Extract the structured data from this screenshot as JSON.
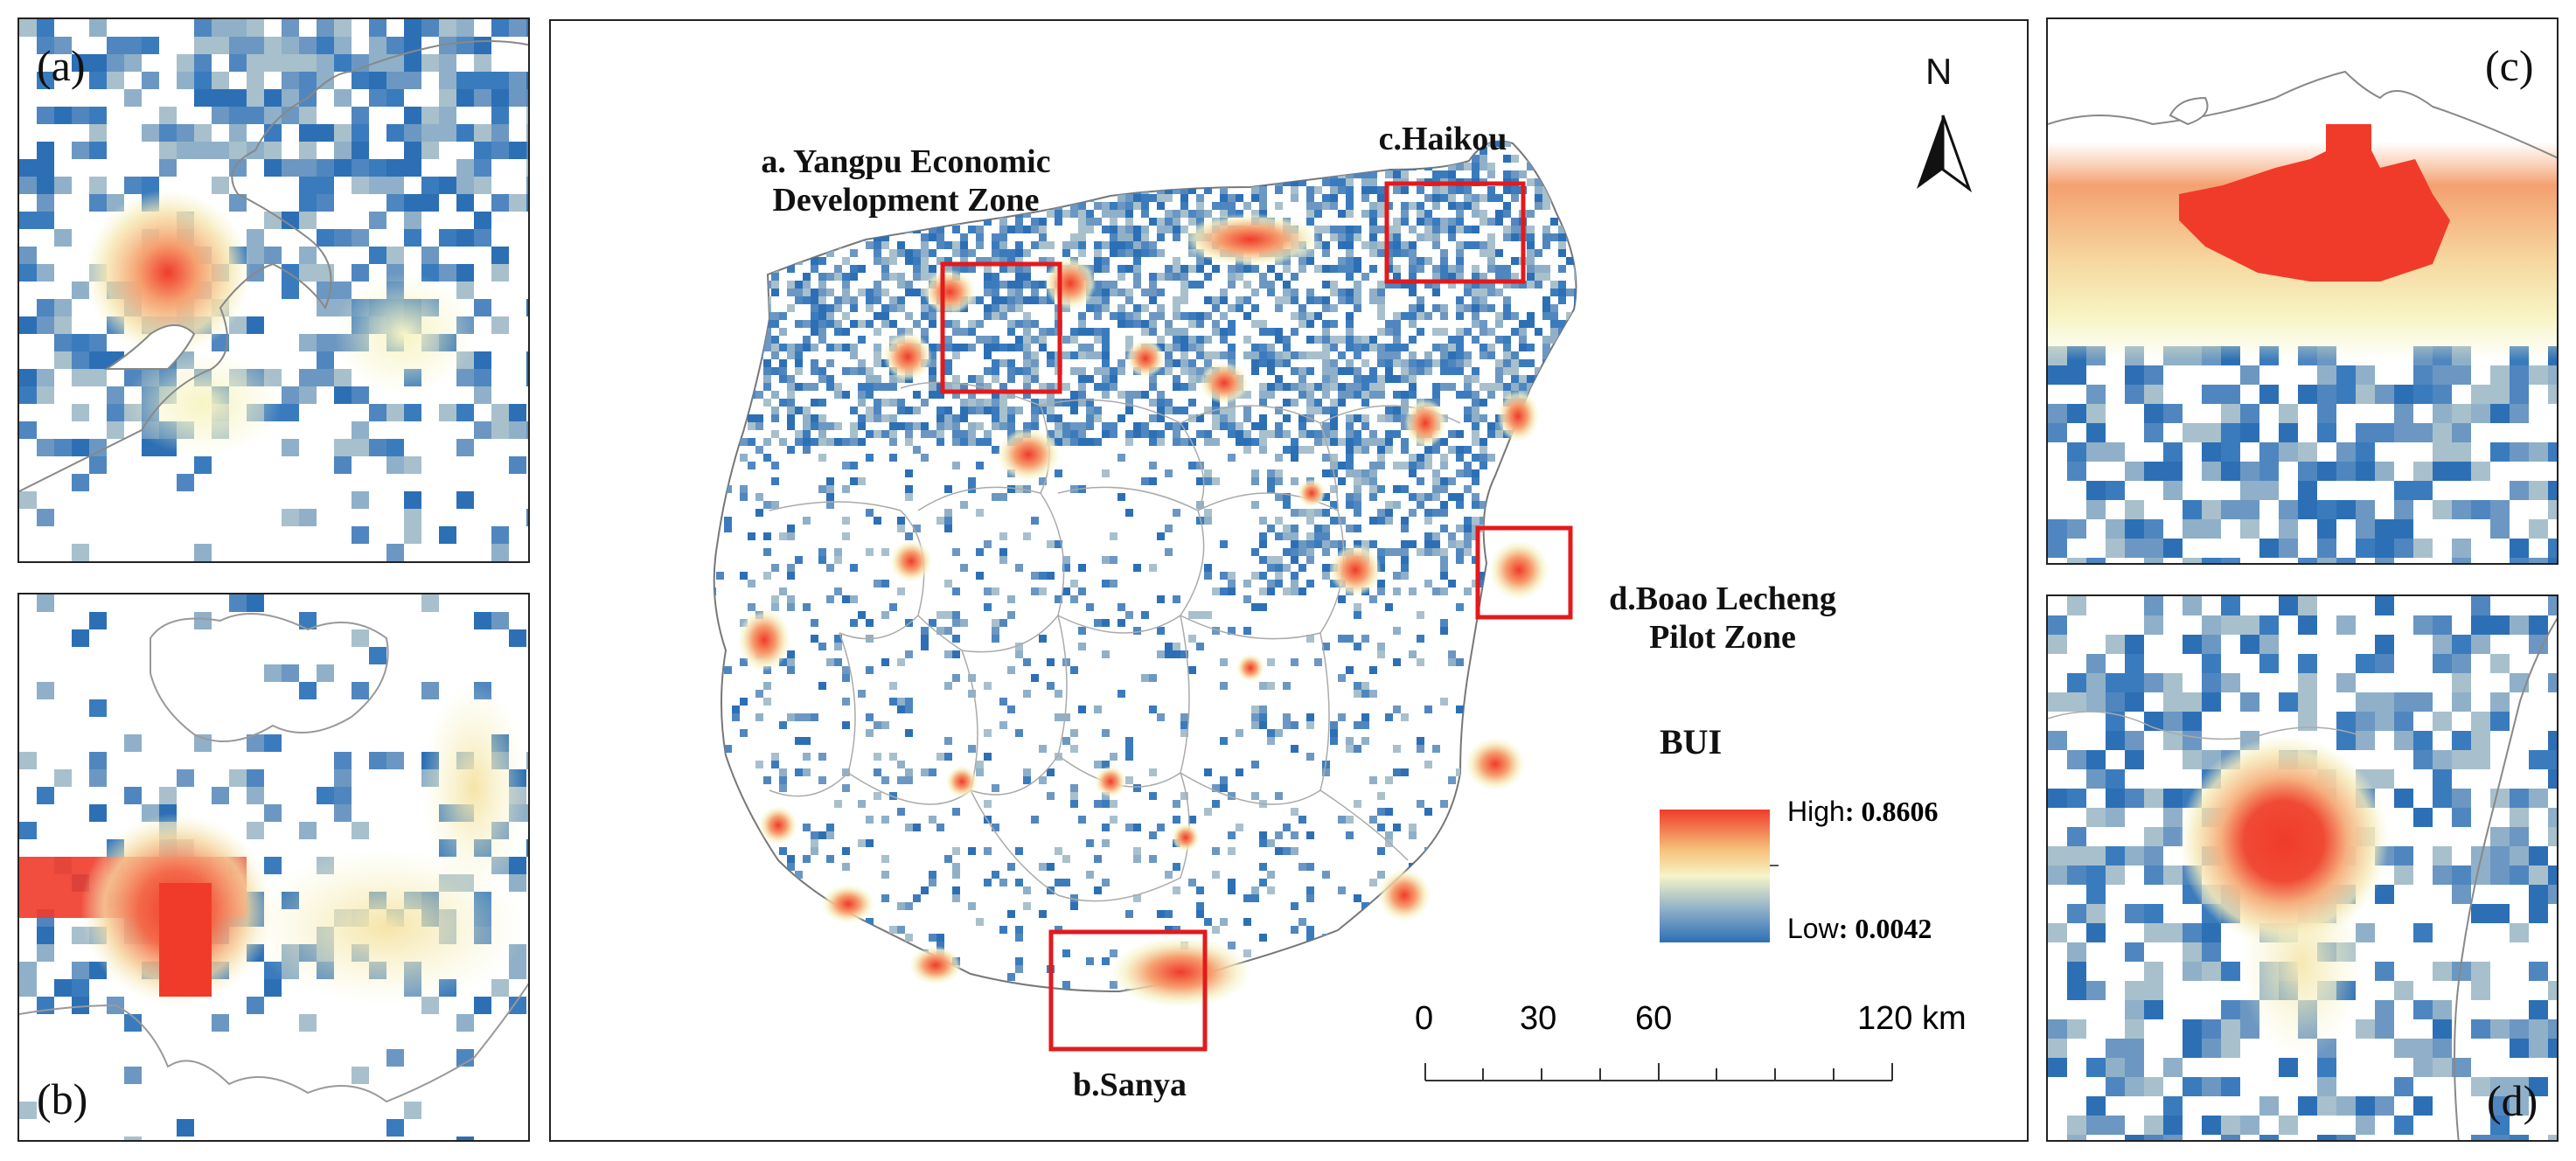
{
  "panels": {
    "a": {
      "label": "(a)"
    },
    "b": {
      "label": "(b)"
    },
    "c": {
      "label": "(c)"
    },
    "d": {
      "label": "(d)"
    }
  },
  "map": {
    "north": "N",
    "zones": {
      "a": "a. Yangpu Economic Development Zone",
      "b": "b.Sanya",
      "c": "c.Haikou",
      "d": "d.Boao Lecheng Pilot Zone"
    }
  },
  "legend": {
    "title": "BUI",
    "high_label": "High",
    "high_value": ": 0.8606",
    "low_label": "Low",
    "low_value": ": 0.0042",
    "high": 0.8606,
    "low": 0.0042,
    "colors": [
      "#2c6fb5",
      "#8fb0c8",
      "#f6f4c8",
      "#f6c07a",
      "#f03b2a"
    ]
  },
  "scalebar": {
    "ticks": [
      "0",
      "30",
      "60",
      "120 km"
    ]
  }
}
